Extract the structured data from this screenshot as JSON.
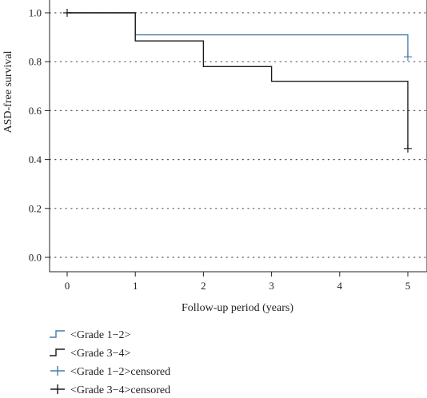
{
  "chart_data": {
    "type": "line",
    "title": "",
    "xlabel": "Follow-up period (years)",
    "ylabel": "ASD-free survival",
    "xlim": [
      -0.3,
      5.3
    ],
    "ylim": [
      -0.06,
      1.05
    ],
    "xticks": [
      0,
      1,
      2,
      3,
      4,
      5
    ],
    "yticks": [
      0.0,
      0.2,
      0.4,
      0.6,
      0.8,
      1.0
    ],
    "x_tick_labels": [
      "0",
      "1",
      "2",
      "3",
      "4",
      "5"
    ],
    "y_tick_labels": [
      "0.0",
      "0.2",
      "0.4",
      "0.6",
      "0.8",
      "1.0"
    ],
    "grid": "horizontal dotted",
    "legend_position": "bottom-left",
    "step": true,
    "series": [
      {
        "name": "<Grade 1−2>",
        "color": "#4a7aa8",
        "x": [
          0,
          1,
          5,
          5
        ],
        "y": [
          1.0,
          0.91,
          0.91,
          0.82
        ]
      },
      {
        "name": "<Grade 3−4>",
        "color": "#1a1a1a",
        "x": [
          0,
          1,
          2,
          3,
          5,
          5
        ],
        "y": [
          1.0,
          0.885,
          0.78,
          0.72,
          0.72,
          0.445
        ]
      }
    ],
    "censored": [
      {
        "name": "<Grade 1−2>censored",
        "color": "#4a7aa8",
        "points": [
          {
            "x": 5,
            "y": 0.82
          }
        ]
      },
      {
        "name": "<Grade 3−4>censored",
        "color": "#1a1a1a",
        "points": [
          {
            "x": 0,
            "y": 1.0
          },
          {
            "x": 5,
            "y": 0.445
          }
        ]
      }
    ],
    "legend": [
      {
        "label": "<Grade 1−2>",
        "kind": "step",
        "color": "#4a7aa8"
      },
      {
        "label": "<Grade 3−4>",
        "kind": "step",
        "color": "#1a1a1a"
      },
      {
        "label": "<Grade 1−2>censored",
        "kind": "plus",
        "color": "#4a7aa8"
      },
      {
        "label": "<Grade 3−4>censored",
        "kind": "plus",
        "color": "#1a1a1a"
      }
    ]
  }
}
